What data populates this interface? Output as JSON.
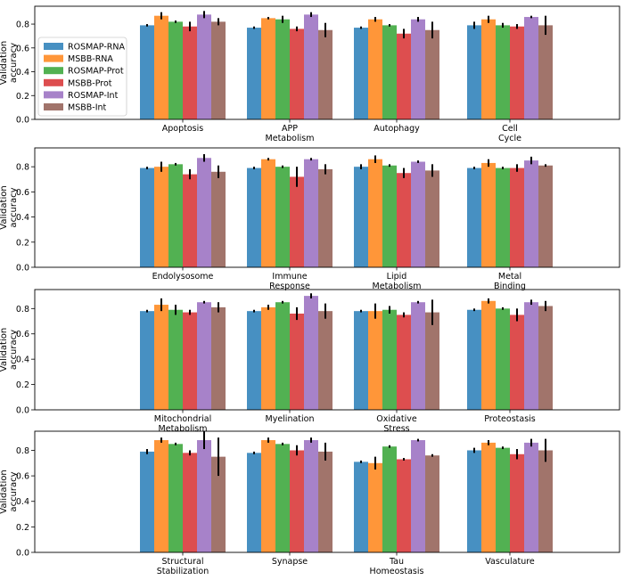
{
  "chart_data": {
    "type": "bar",
    "ylabel": "Validation\naccuracy",
    "ylim": [
      0,
      0.95
    ],
    "yticks": [
      0.0,
      0.2,
      0.4,
      0.6,
      0.8
    ],
    "ytick_labels": [
      "0.0",
      "0.2",
      "0.4",
      "0.6",
      "0.8"
    ],
    "legend_position": "upper-left of first panel",
    "series": [
      {
        "name": "ROSMAP-RNA",
        "color": "#1f77b4"
      },
      {
        "name": "MSBB-RNA",
        "color": "#ff7f0e"
      },
      {
        "name": "ROSMAP-Prot",
        "color": "#2ca02c"
      },
      {
        "name": "MSBB-Prot",
        "color": "#d62728"
      },
      {
        "name": "ROSMAP-Int",
        "color": "#9467bd"
      },
      {
        "name": "MSBB-Int",
        "color": "#8c564b"
      }
    ],
    "panels": [
      {
        "categories": [
          "Apoptosis",
          "APP\nMetabolism",
          "Autophagy",
          "Cell\nCycle"
        ],
        "values": [
          [
            0.79,
            0.87,
            0.82,
            0.78,
            0.88,
            0.82
          ],
          [
            0.77,
            0.85,
            0.84,
            0.76,
            0.88,
            0.75
          ],
          [
            0.77,
            0.84,
            0.79,
            0.72,
            0.84,
            0.75
          ],
          [
            0.79,
            0.84,
            0.79,
            0.78,
            0.86,
            0.79
          ]
        ],
        "errors": [
          [
            0.01,
            0.03,
            0.01,
            0.04,
            0.03,
            0.03
          ],
          [
            0.01,
            0.01,
            0.03,
            0.02,
            0.02,
            0.06
          ],
          [
            0.01,
            0.02,
            0.01,
            0.04,
            0.02,
            0.07
          ],
          [
            0.03,
            0.03,
            0.02,
            0.02,
            0.01,
            0.08
          ]
        ]
      },
      {
        "categories": [
          "Endolysosome",
          "Immune\nResponse",
          "Lipid\nMetabolism",
          "Metal\nBinding"
        ],
        "values": [
          [
            0.79,
            0.8,
            0.82,
            0.74,
            0.87,
            0.76
          ],
          [
            0.79,
            0.86,
            0.8,
            0.72,
            0.86,
            0.78
          ],
          [
            0.8,
            0.86,
            0.81,
            0.75,
            0.84,
            0.77
          ],
          [
            0.79,
            0.83,
            0.79,
            0.79,
            0.85,
            0.81
          ]
        ],
        "errors": [
          [
            0.01,
            0.04,
            0.01,
            0.04,
            0.03,
            0.05
          ],
          [
            0.01,
            0.01,
            0.01,
            0.08,
            0.01,
            0.04
          ],
          [
            0.02,
            0.03,
            0.01,
            0.04,
            0.01,
            0.05
          ],
          [
            0.01,
            0.03,
            0.01,
            0.03,
            0.03,
            0.01
          ]
        ]
      },
      {
        "categories": [
          "Mitochondrial\nMetabolism",
          "Myelination",
          "Oxidative\nStress",
          "Proteostasis"
        ],
        "values": [
          [
            0.78,
            0.83,
            0.79,
            0.77,
            0.85,
            0.81
          ],
          [
            0.78,
            0.81,
            0.85,
            0.76,
            0.9,
            0.78
          ],
          [
            0.78,
            0.78,
            0.79,
            0.75,
            0.85,
            0.77
          ],
          [
            0.79,
            0.86,
            0.8,
            0.75,
            0.85,
            0.82
          ]
        ],
        "errors": [
          [
            0.01,
            0.05,
            0.04,
            0.02,
            0.01,
            0.04
          ],
          [
            0.01,
            0.02,
            0.01,
            0.05,
            0.02,
            0.06
          ],
          [
            0.01,
            0.06,
            0.03,
            0.02,
            0.01,
            0.1
          ],
          [
            0.01,
            0.02,
            0.01,
            0.05,
            0.02,
            0.04
          ]
        ]
      },
      {
        "categories": [
          "Structural\nStabilization",
          "Synapse",
          "Tau\nHomeostasis",
          "Vasculature"
        ],
        "values": [
          [
            0.79,
            0.88,
            0.85,
            0.78,
            0.88,
            0.75
          ],
          [
            0.78,
            0.88,
            0.85,
            0.8,
            0.88,
            0.79
          ],
          [
            0.71,
            0.7,
            0.83,
            0.73,
            0.88,
            0.76
          ],
          [
            0.8,
            0.86,
            0.82,
            0.77,
            0.86,
            0.8
          ]
        ],
        "errors": [
          [
            0.02,
            0.02,
            0.01,
            0.02,
            0.07,
            0.15
          ],
          [
            0.01,
            0.02,
            0.01,
            0.04,
            0.02,
            0.07
          ],
          [
            0.01,
            0.05,
            0.01,
            0.01,
            0.01,
            0.01
          ],
          [
            0.02,
            0.02,
            0.01,
            0.04,
            0.03,
            0.09
          ]
        ]
      }
    ]
  }
}
